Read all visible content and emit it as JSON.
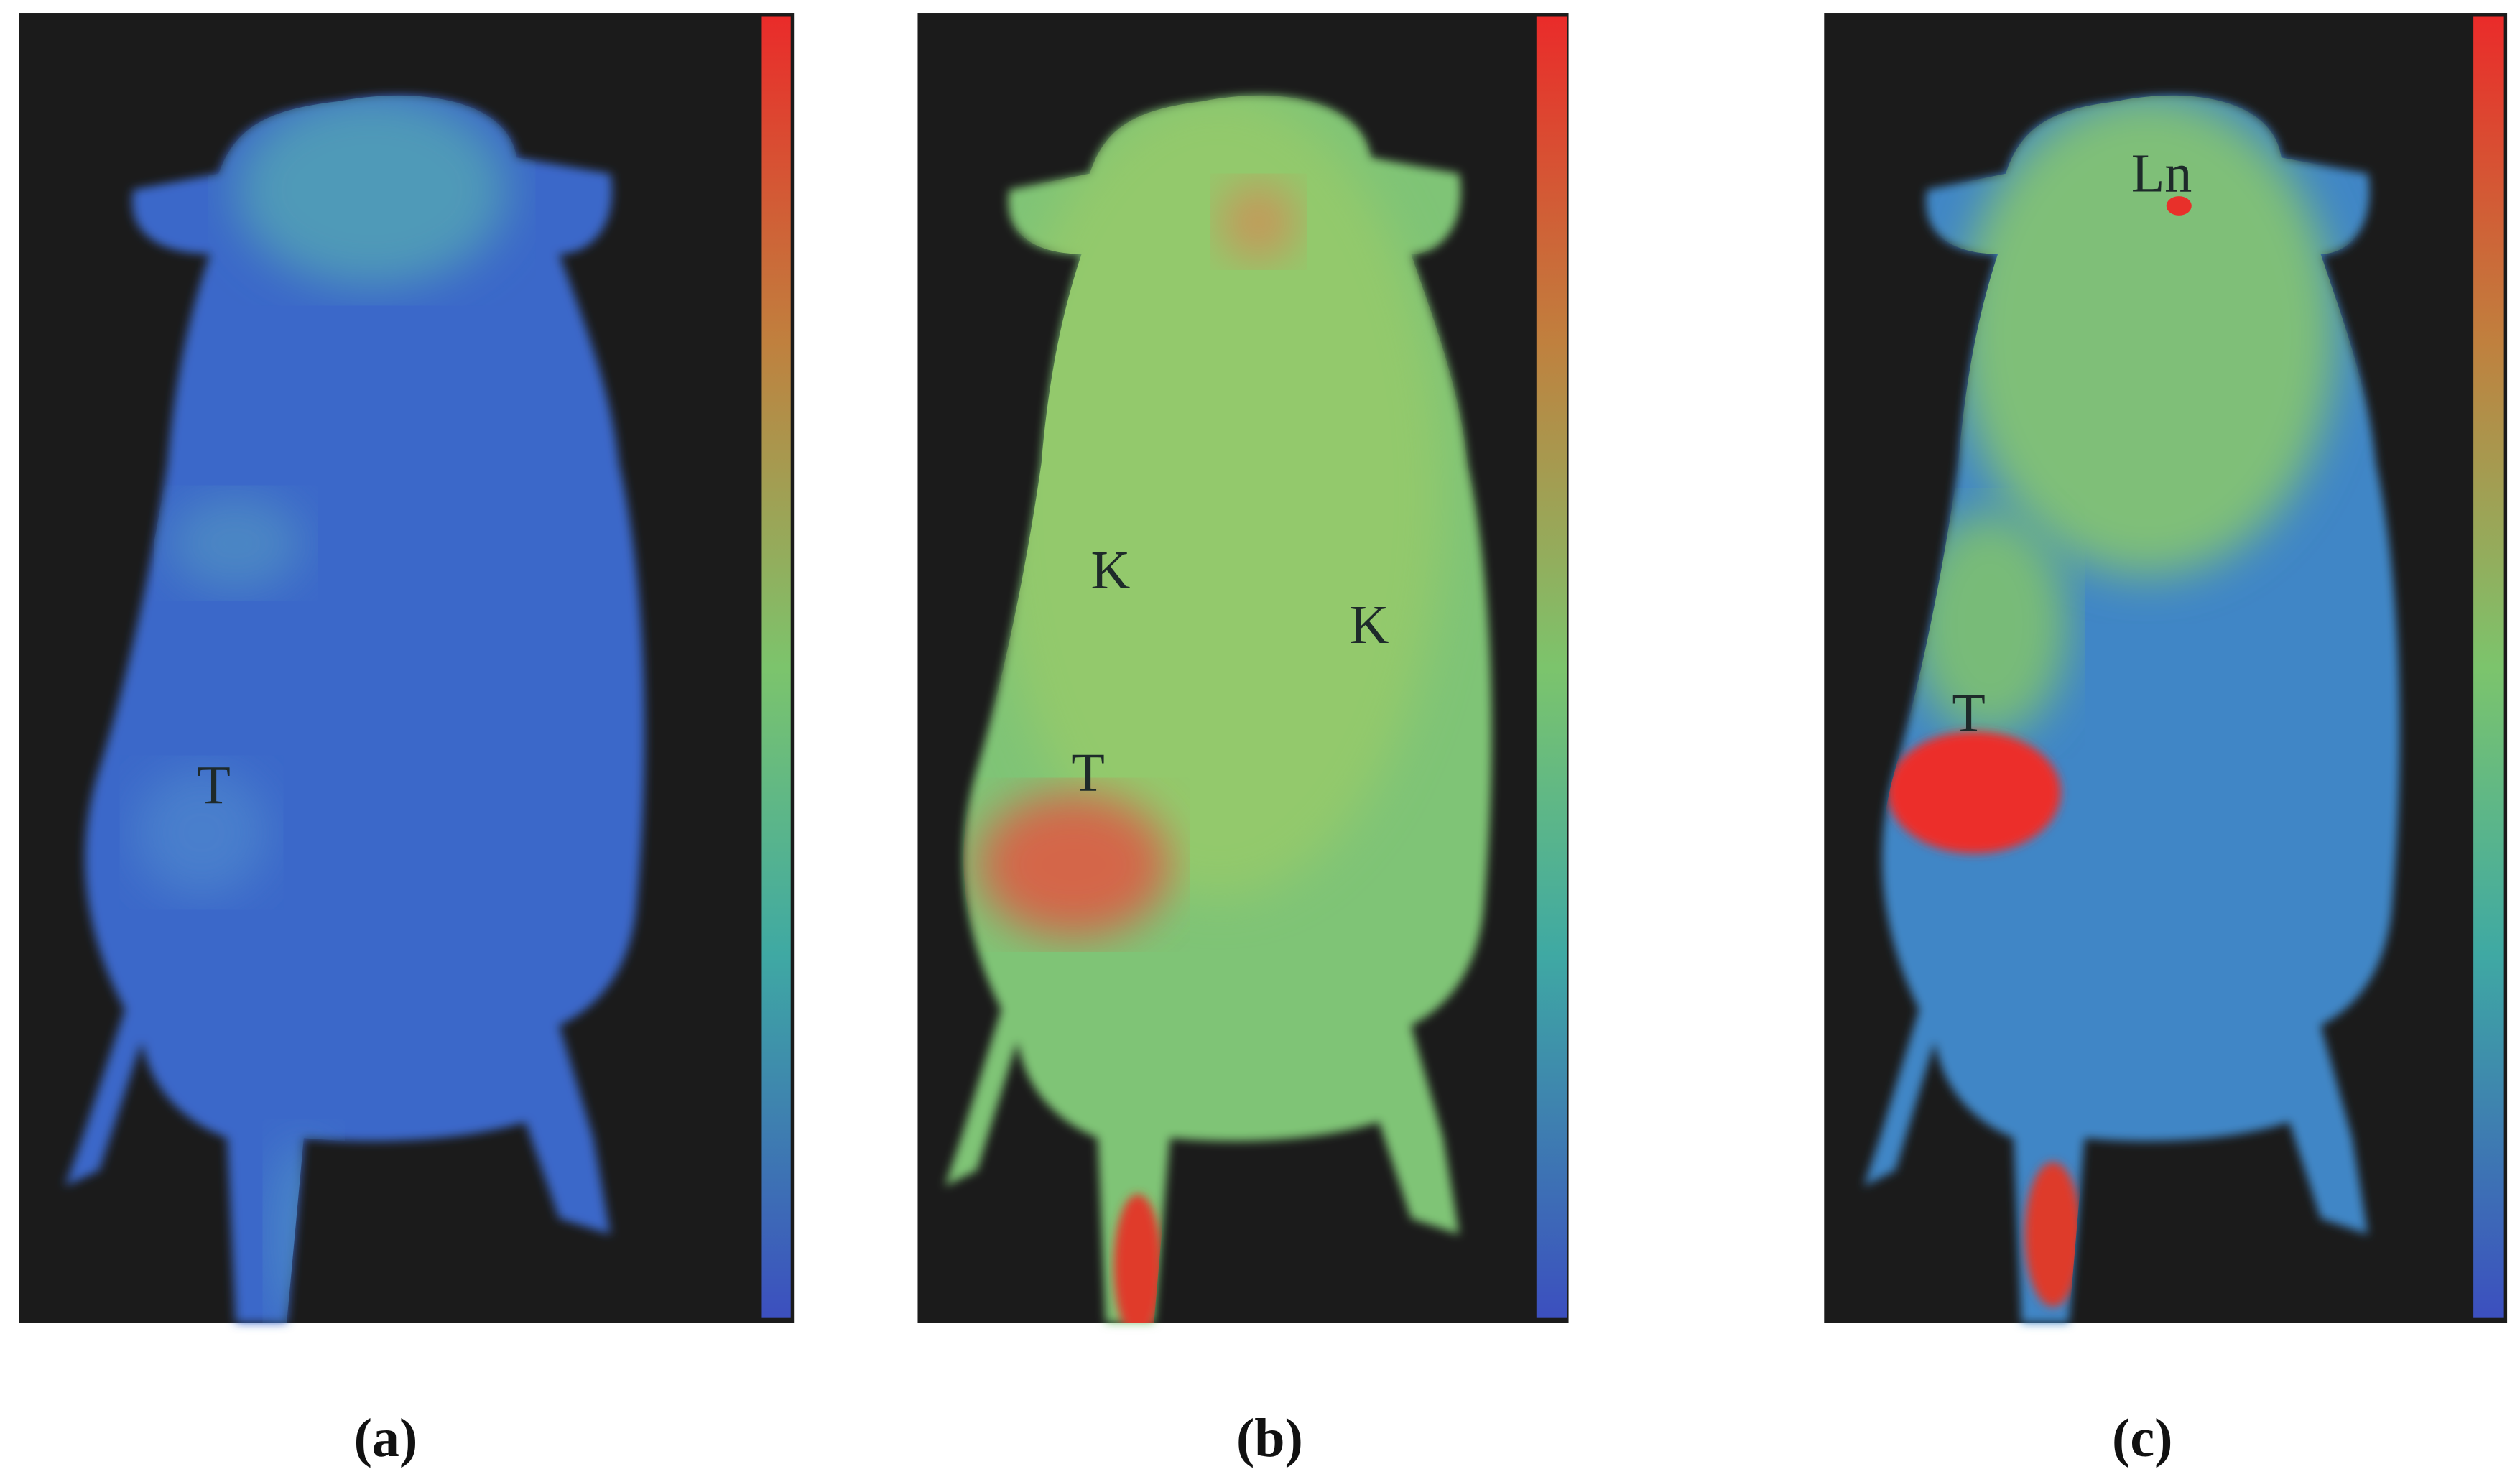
{
  "panels": [
    {
      "caption": "(a)",
      "labels": [
        "T"
      ]
    },
    {
      "caption": "(b)",
      "labels": [
        "K",
        "K",
        "T"
      ]
    },
    {
      "caption": "(c)",
      "labels": [
        "Ln",
        "T"
      ]
    }
  ]
}
